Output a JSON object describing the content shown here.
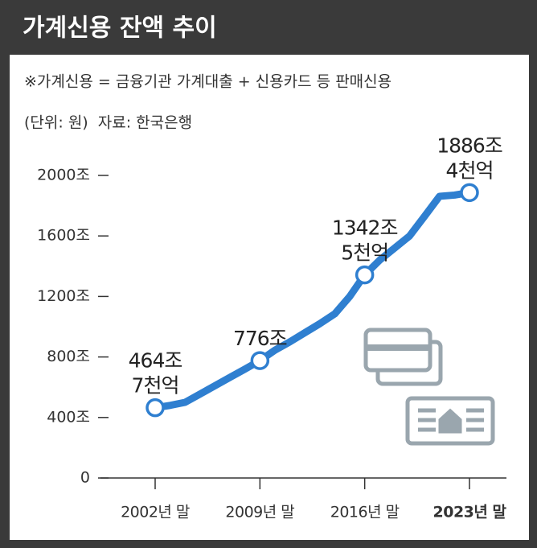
{
  "chart_data": {
    "type": "line",
    "title": "가계신용 잔액 추이",
    "subtitle": "※가계신용 = 금융기관 가계대출 + 신용카드 등 판매신용",
    "note": "(단위: 원)  자료: 한국은행",
    "categories": [
      "2002년 말",
      null,
      null,
      null,
      null,
      null,
      null,
      "2009년 말",
      null,
      null,
      null,
      null,
      null,
      null,
      "2016년 말",
      null,
      null,
      null,
      null,
      null,
      null,
      "2023년 말"
    ],
    "series": [
      {
        "name": "가계신용",
        "color": "#2f7fd0",
        "values": [
          464.7,
          480,
          500,
          555,
          610,
          665,
          720,
          776,
          845,
          900,
          960,
          1020,
          1085,
          1200,
          1342.5,
          1440,
          1520,
          1600,
          1730,
          1862,
          1870,
          1886.4
        ],
        "value_labels": [
          "464조\n7천억",
          null,
          null,
          null,
          null,
          null,
          null,
          "776조",
          null,
          null,
          null,
          null,
          null,
          null,
          "1342조\n5천억",
          null,
          null,
          null,
          null,
          null,
          null,
          "1886조\n4천억"
        ]
      }
    ],
    "ylim": [
      0,
      2000
    ],
    "yticks": [
      0,
      {
        "value": 400,
        "label": "400조"
      },
      {
        "value": 800,
        "label": "800조"
      },
      {
        "value": 1200,
        "label": "1200조"
      },
      {
        "value": 1600,
        "label": "1600조"
      },
      {
        "value": 2000,
        "label": "2000조"
      }
    ]
  }
}
